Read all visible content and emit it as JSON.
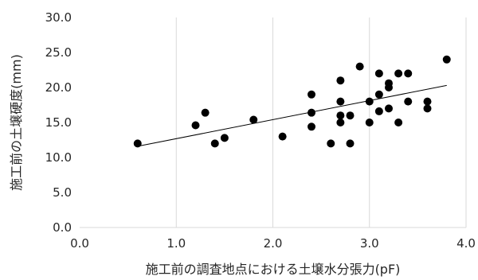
{
  "chart_data": {
    "type": "scatter",
    "title": "",
    "xlabel": "施工前の調査地点における土壌水分張力(pF)",
    "ylabel": "施工前の土壌硬度(mm)",
    "xlim": [
      0.0,
      4.0
    ],
    "ylim": [
      0.0,
      30.0
    ],
    "x_ticks": [
      0.0,
      1.0,
      2.0,
      3.0,
      4.0
    ],
    "y_ticks": [
      0.0,
      5.0,
      10.0,
      15.0,
      20.0,
      25.0,
      30.0
    ],
    "x_tick_labels": [
      "0.0",
      "1.0",
      "2.0",
      "3.0",
      "4.0"
    ],
    "y_tick_labels": [
      "0.0",
      "5.0",
      "10.0",
      "15.0",
      "20.0",
      "25.0",
      "30.0"
    ],
    "grid": "vertical",
    "marker_color": "#000000",
    "points": [
      {
        "x": 0.6,
        "y": 12.0
      },
      {
        "x": 1.2,
        "y": 14.6
      },
      {
        "x": 1.3,
        "y": 16.4
      },
      {
        "x": 1.4,
        "y": 12.0
      },
      {
        "x": 1.5,
        "y": 12.8
      },
      {
        "x": 1.8,
        "y": 15.4
      },
      {
        "x": 2.1,
        "y": 13.0
      },
      {
        "x": 2.4,
        "y": 19.0
      },
      {
        "x": 2.4,
        "y": 16.4
      },
      {
        "x": 2.4,
        "y": 14.4
      },
      {
        "x": 2.6,
        "y": 12.0
      },
      {
        "x": 2.7,
        "y": 21.0
      },
      {
        "x": 2.7,
        "y": 18.0
      },
      {
        "x": 2.7,
        "y": 16.0
      },
      {
        "x": 2.7,
        "y": 15.0
      },
      {
        "x": 2.8,
        "y": 16.0
      },
      {
        "x": 2.8,
        "y": 12.0
      },
      {
        "x": 2.9,
        "y": 23.0
      },
      {
        "x": 3.0,
        "y": 18.0
      },
      {
        "x": 3.0,
        "y": 15.0
      },
      {
        "x": 3.1,
        "y": 22.0
      },
      {
        "x": 3.1,
        "y": 19.0
      },
      {
        "x": 3.1,
        "y": 16.6
      },
      {
        "x": 3.2,
        "y": 20.6
      },
      {
        "x": 3.2,
        "y": 20.0
      },
      {
        "x": 3.2,
        "y": 17.0
      },
      {
        "x": 3.3,
        "y": 22.0
      },
      {
        "x": 3.3,
        "y": 15.0
      },
      {
        "x": 3.4,
        "y": 22.0
      },
      {
        "x": 3.4,
        "y": 18.0
      },
      {
        "x": 3.6,
        "y": 18.0
      },
      {
        "x": 3.6,
        "y": 17.0
      },
      {
        "x": 3.8,
        "y": 24.0
      }
    ],
    "trendline": {
      "type": "linear",
      "color": "#000000",
      "x": [
        0.6,
        3.8
      ],
      "y": [
        11.6,
        20.3
      ]
    }
  }
}
